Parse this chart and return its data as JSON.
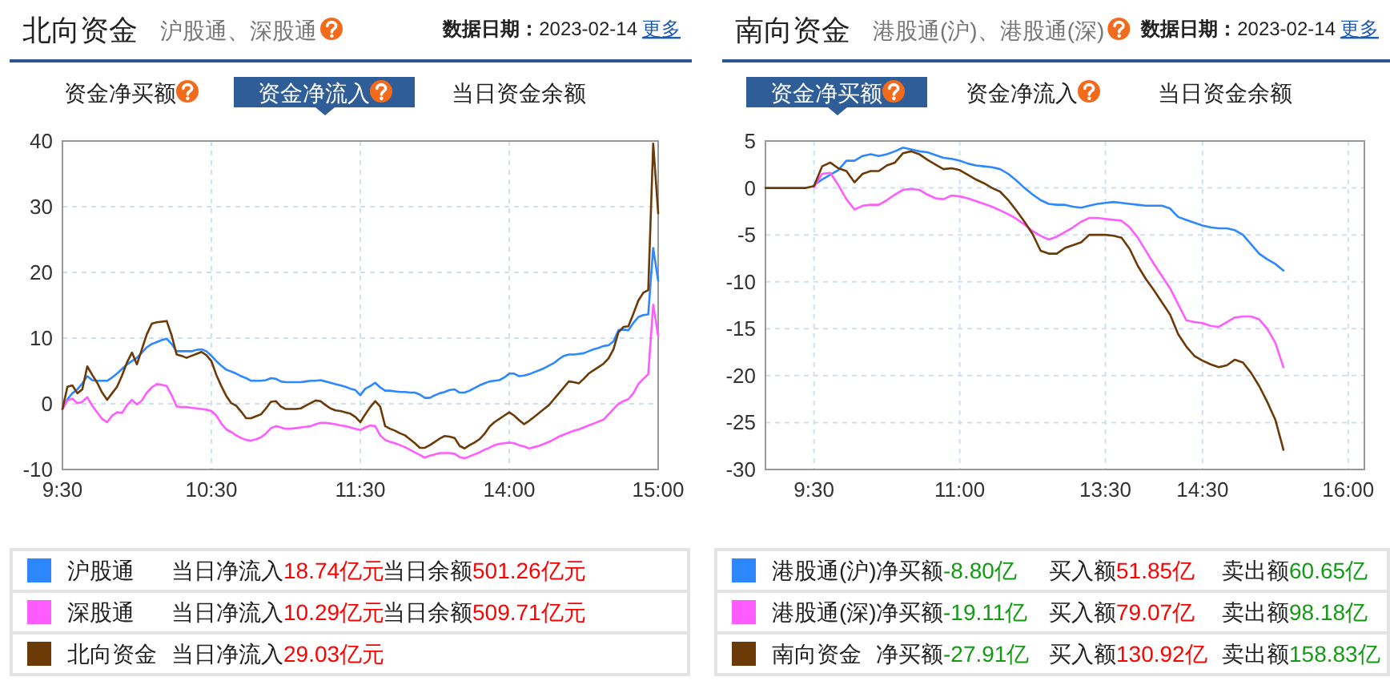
{
  "chart_data": [
    {
      "type": "line",
      "title": "北向资金",
      "subtitle": "沪股通、深股通",
      "categories": [
        "9:30",
        null,
        null,
        null,
        null,
        null,
        null,
        null,
        null,
        null,
        null,
        null,
        null,
        null,
        null,
        null,
        null,
        null,
        null,
        null,
        null,
        null,
        null,
        null,
        null,
        null,
        null,
        null,
        null,
        null,
        "10:30",
        null,
        null,
        null,
        null,
        null,
        null,
        null,
        null,
        null,
        null,
        null,
        null,
        null,
        null,
        null,
        null,
        null,
        null,
        null,
        null,
        null,
        null,
        null,
        null,
        null,
        null,
        null,
        null,
        null,
        "11:30",
        null,
        null,
        null,
        null,
        null,
        null,
        null,
        null,
        null,
        null,
        null,
        null,
        null,
        null,
        null,
        null,
        null,
        null,
        null,
        null,
        null,
        null,
        null,
        null,
        null,
        null,
        null,
        null,
        null,
        "14:00",
        null,
        null,
        null,
        null,
        null,
        null,
        null,
        null,
        null,
        null,
        null,
        null,
        null,
        null,
        null,
        null,
        null,
        null,
        null,
        null,
        null,
        null,
        null,
        null,
        null,
        null,
        null,
        null,
        null,
        "15:00"
      ],
      "series": [
        {
          "name": "沪股通",
          "color": "#2d88ff",
          "values": [
            -0.8,
            0.7,
            1.6,
            2.2,
            3.1,
            4.2,
            3.6,
            3.5,
            3.5,
            3.5,
            4.0,
            4.6,
            5.3,
            6.0,
            6.5,
            7.0,
            7.8,
            8.6,
            9.1,
            9.4,
            9.7,
            9.9,
            9.1,
            8.0,
            8.0,
            8.0,
            8.0,
            8.2,
            8.3,
            8.0,
            7.3,
            6.5,
            5.8,
            5.2,
            4.9,
            4.6,
            4.2,
            3.9,
            3.5,
            3.5,
            3.5,
            3.6,
            3.9,
            3.8,
            3.4,
            3.3,
            3.3,
            3.3,
            3.3,
            3.4,
            3.5,
            3.5,
            3.6,
            3.4,
            3.2,
            3.0,
            2.8,
            2.6,
            2.3,
            2.1,
            1.3,
            2.3,
            2.7,
            3.2,
            2.5,
            2.0,
            2.0,
            1.9,
            1.8,
            1.8,
            1.7,
            1.7,
            1.4,
            0.9,
            0.9,
            1.3,
            1.6,
            1.8,
            2.1,
            2.2,
            1.7,
            1.7,
            2.0,
            2.4,
            2.8,
            3.1,
            3.4,
            3.5,
            3.6,
            4.0,
            4.6,
            4.6,
            4.2,
            4.3,
            4.5,
            4.8,
            5.1,
            5.4,
            5.8,
            6.2,
            6.8,
            7.3,
            7.5,
            7.5,
            7.6,
            7.7,
            8.0,
            8.3,
            8.5,
            8.8,
            8.9,
            9.5,
            11.2,
            11.3,
            11.2,
            12.3,
            13.2,
            13.5,
            13.6,
            23.7,
            18.7
          ]
        },
        {
          "name": "深股通",
          "color": "#ff5cff",
          "values": [
            -0.8,
            0.5,
            0.8,
            0.1,
            0.3,
            1.0,
            -0.3,
            -1.3,
            -2.3,
            -2.8,
            -1.8,
            -1.3,
            -1.4,
            -0.2,
            0.6,
            -0.1,
            0.5,
            1.7,
            2.5,
            3.0,
            2.9,
            2.7,
            1.3,
            -0.4,
            -0.5,
            -0.5,
            -0.6,
            -0.7,
            -0.8,
            -0.9,
            -1.1,
            -1.8,
            -3.0,
            -3.9,
            -4.3,
            -4.8,
            -5.2,
            -5.5,
            -5.6,
            -5.4,
            -5.1,
            -4.5,
            -3.7,
            -3.4,
            -3.6,
            -3.8,
            -3.8,
            -3.7,
            -3.6,
            -3.5,
            -3.4,
            -3.1,
            -2.9,
            -2.9,
            -3.0,
            -3.1,
            -3.3,
            -3.4,
            -3.6,
            -3.8,
            -4.0,
            -3.6,
            -3.3,
            -3.4,
            -4.8,
            -5.5,
            -5.8,
            -6.0,
            -6.3,
            -6.6,
            -7.0,
            -7.4,
            -7.8,
            -8.2,
            -7.9,
            -7.7,
            -7.5,
            -7.5,
            -7.5,
            -7.6,
            -8.1,
            -8.3,
            -8.0,
            -7.7,
            -7.4,
            -7.0,
            -6.7,
            -6.3,
            -6.1,
            -6.0,
            -5.9,
            -6.0,
            -6.3,
            -6.5,
            -6.8,
            -6.6,
            -6.4,
            -6.1,
            -5.8,
            -5.4,
            -5.0,
            -4.7,
            -4.4,
            -4.1,
            -3.9,
            -3.6,
            -3.3,
            -3.0,
            -2.7,
            -2.4,
            -1.6,
            -0.8,
            0.0,
            0.4,
            0.7,
            1.6,
            3.0,
            3.8,
            4.5,
            15.1,
            10.3
          ]
        },
        {
          "name": "北向资金",
          "color": "#6b3a07",
          "values": [
            -0.8,
            2.6,
            2.8,
            1.6,
            2.2,
            5.7,
            4.4,
            3.2,
            1.7,
            0.6,
            1.6,
            2.6,
            4.3,
            6.3,
            7.8,
            6.0,
            8.3,
            10.6,
            12.2,
            12.4,
            12.5,
            12.6,
            10.4,
            7.5,
            7.3,
            7.0,
            7.3,
            7.6,
            7.9,
            7.4,
            6.5,
            4.4,
            2.7,
            1.2,
            0.1,
            -0.3,
            -1.2,
            -2.2,
            -2.2,
            -1.9,
            -1.6,
            -0.7,
            0.3,
            0.4,
            -0.4,
            -0.8,
            -0.8,
            -0.8,
            -0.7,
            -0.3,
            0.1,
            0.5,
            0.4,
            -0.2,
            -0.7,
            -1.0,
            -1.1,
            -1.3,
            -1.5,
            -2.0,
            -2.8,
            -1.6,
            -0.5,
            0.4,
            -0.4,
            -3.4,
            -3.8,
            -4.1,
            -4.5,
            -4.8,
            -5.4,
            -6.0,
            -6.7,
            -6.7,
            -6.3,
            -5.8,
            -5.3,
            -4.9,
            -5.0,
            -5.2,
            -6.4,
            -6.8,
            -6.3,
            -5.9,
            -5.4,
            -4.6,
            -3.5,
            -2.8,
            -2.3,
            -1.8,
            -1.3,
            -1.8,
            -2.5,
            -3.1,
            -2.6,
            -2.0,
            -1.4,
            -0.8,
            -0.2,
            0.7,
            1.6,
            2.5,
            3.4,
            3.3,
            3.1,
            3.8,
            4.6,
            5.1,
            5.6,
            6.1,
            6.9,
            8.3,
            10.9,
            11.7,
            11.8,
            13.7,
            15.7,
            16.9,
            17.3,
            39.6,
            29.0
          ]
        }
      ],
      "ylim": [
        -10,
        40
      ],
      "yticks": [
        -10,
        0,
        10,
        20,
        30,
        40
      ],
      "grid": true,
      "legend": "bottom",
      "annotations": [
        "数据日期：",
        "2023-02-14",
        "更多",
        "资金净买额",
        "资金净流入",
        "当日资金余额",
        "当日净流入",
        "18.74亿元",
        "当日余额",
        "501.26亿元",
        "当日净流入",
        "10.29亿元",
        "当日余额",
        "509.71亿元",
        "当日净流入",
        "29.03亿元"
      ]
    },
    {
      "type": "line",
      "title": "南向资金",
      "subtitle": "港股通(沪)、港股通(深)",
      "categories": [
        null,
        null,
        null,
        null,
        null,
        null,
        "9:30",
        null,
        null,
        null,
        null,
        null,
        null,
        null,
        null,
        null,
        null,
        null,
        null,
        null,
        null,
        null,
        null,
        null,
        "11:00",
        null,
        null,
        null,
        null,
        null,
        null,
        null,
        null,
        null,
        null,
        null,
        null,
        null,
        null,
        null,
        null,
        null,
        "13:30",
        null,
        null,
        null,
        null,
        null,
        null,
        null,
        null,
        null,
        null,
        null,
        "14:30",
        null,
        null,
        null,
        null,
        null,
        null,
        null,
        null,
        null,
        null,
        null,
        null,
        null,
        null,
        null,
        null,
        null,
        "16:00",
        null,
        null
      ],
      "series": [
        {
          "name": "港股通(沪)",
          "color": "#2d88ff",
          "values": [
            null,
            null,
            null,
            null,
            null,
            null,
            0.3,
            0.9,
            1.4,
            1.9,
            2.9,
            2.9,
            3.4,
            3.6,
            3.4,
            3.6,
            3.9,
            4.3,
            4.1,
            3.9,
            3.8,
            3.5,
            3.2,
            3.1,
            2.9,
            2.6,
            2.4,
            2.3,
            2.2,
            2.0,
            1.5,
            0.8,
            0.0,
            -0.7,
            -1.3,
            -1.7,
            -1.8,
            -1.8,
            -2.0,
            -2.1,
            -1.9,
            -1.7,
            -1.6,
            -1.5,
            -1.6,
            -1.7,
            -1.8,
            -1.9,
            -1.9,
            -1.9,
            -2.2,
            -3.1,
            -3.4,
            -3.7,
            -4.0,
            -4.2,
            -4.3,
            -4.3,
            -4.5,
            -5.0,
            -6.0,
            -7.0,
            -7.6,
            -8.1,
            -8.8,
            null,
            null,
            null,
            null,
            null,
            null,
            null,
            null,
            null,
            null
          ]
        },
        {
          "name": "港股通(深)",
          "color": "#ff5cff",
          "values": [
            null,
            null,
            null,
            null,
            null,
            null,
            0.1,
            1.5,
            1.6,
            0.3,
            -1.2,
            -2.3,
            -1.9,
            -1.8,
            -1.8,
            -1.3,
            -0.7,
            -0.2,
            -0.1,
            -0.2,
            -0.7,
            -1.1,
            -1.2,
            -0.8,
            -0.9,
            -1.1,
            -1.4,
            -1.7,
            -2.0,
            -2.4,
            -2.8,
            -3.3,
            -3.9,
            -4.6,
            -5.1,
            -5.5,
            -5.2,
            -4.7,
            -4.2,
            -3.6,
            -3.2,
            -3.2,
            -3.3,
            -3.4,
            -3.5,
            -4.2,
            -5.3,
            -6.7,
            -8.1,
            -9.4,
            -10.7,
            -12.4,
            -14.1,
            -14.3,
            -14.4,
            -14.7,
            -14.8,
            -14.3,
            -13.8,
            -13.7,
            -13.7,
            -14.0,
            -15.0,
            -16.5,
            -19.1,
            null,
            null,
            null,
            null,
            null,
            null,
            null,
            null,
            null,
            null
          ]
        },
        {
          "name": "南向资金",
          "color": "#6b3a07",
          "values": [
            0,
            0,
            0,
            0,
            0,
            0,
            0.2,
            2.3,
            2.7,
            2.1,
            1.8,
            0.6,
            1.5,
            1.8,
            1.8,
            2.4,
            2.7,
            3.7,
            3.9,
            3.6,
            3.0,
            2.5,
            2.0,
            2.1,
            1.9,
            1.4,
            0.9,
            0.5,
            0.0,
            -0.4,
            -1.3,
            -2.4,
            -3.6,
            -4.9,
            -6.7,
            -7.0,
            -7.0,
            -6.4,
            -6.1,
            -5.8,
            -5.0,
            -5.0,
            -5.0,
            -5.1,
            -5.3,
            -6.5,
            -8.3,
            -9.7,
            -10.9,
            -12.2,
            -13.5,
            -15.6,
            -16.9,
            -17.9,
            -18.4,
            -18.8,
            -19.1,
            -18.9,
            -18.3,
            -18.6,
            -19.7,
            -21.1,
            -22.8,
            -24.7,
            -27.9,
            null,
            null,
            null,
            null,
            null,
            null,
            null,
            null,
            null,
            null
          ]
        }
      ],
      "ylim": [
        -30,
        5
      ],
      "yticks": [
        -30,
        -25,
        -20,
        -15,
        -10,
        -5,
        0,
        5
      ],
      "grid": true,
      "legend": "bottom",
      "annotations": [
        "数据日期：",
        "2023-02-14",
        "更多",
        "资金净买额",
        "资金净流入",
        "当日资金余额",
        "净买额",
        "-8.80亿",
        "买入额",
        "51.85亿",
        "卖出额",
        "60.65亿",
        "净买额",
        "-19.11亿",
        "买入额",
        "79.07亿",
        "卖出额",
        "98.18亿",
        "净买额",
        "-27.91亿",
        "买入额",
        "130.92亿",
        "卖出额",
        "158.83亿"
      ]
    }
  ]
}
